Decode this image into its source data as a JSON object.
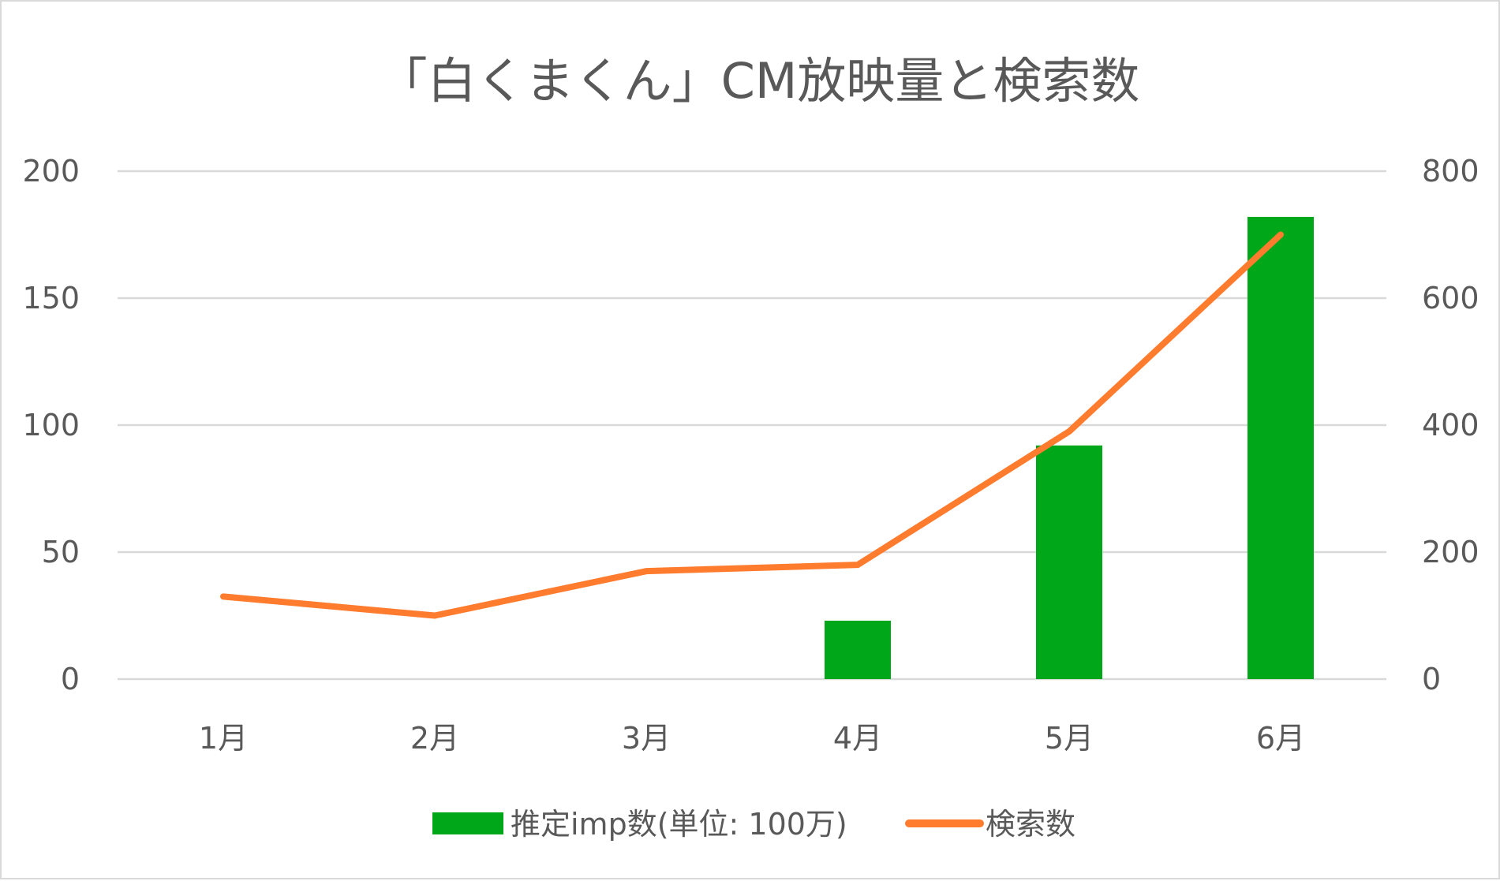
{
  "chart_data": {
    "type": "bar",
    "title": "「白くまくん」CM放映量と検索数",
    "categories": [
      "1月",
      "2月",
      "3月",
      "4月",
      "5月",
      "6月"
    ],
    "y_left": {
      "ticks": [
        "0",
        "50",
        "100",
        "150",
        "200"
      ],
      "ylim": [
        0,
        200
      ]
    },
    "y_right": {
      "ticks": [
        "0",
        "200",
        "400",
        "600",
        "800"
      ],
      "ylim": [
        0,
        800
      ]
    },
    "grid": true,
    "legend_position": "bottom",
    "series": [
      {
        "name": "推定imp数(単位: 100万)",
        "type": "bar",
        "axis": "left",
        "color": "#00a819",
        "values": [
          0,
          0,
          0,
          23,
          92,
          182
        ]
      },
      {
        "name": "検索数",
        "type": "line",
        "axis": "right",
        "color": "#ff7b2e",
        "values": [
          130,
          100,
          170,
          180,
          390,
          700
        ]
      }
    ]
  }
}
